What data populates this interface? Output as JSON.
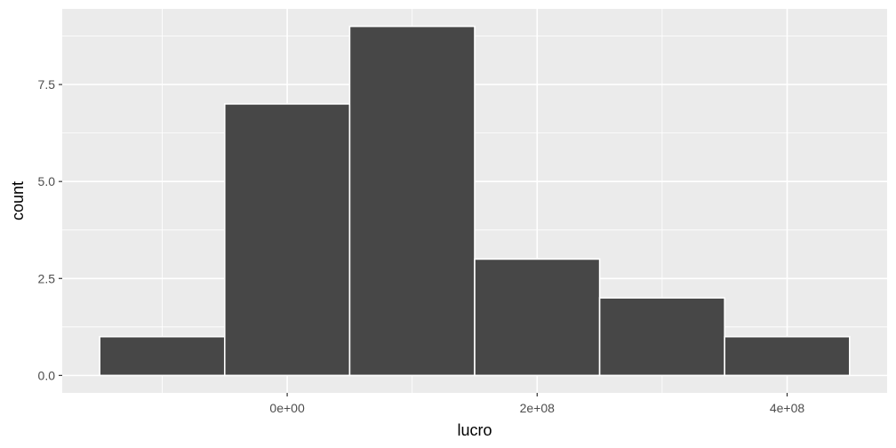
{
  "chart_data": {
    "type": "bar",
    "subtype": "histogram",
    "xlabel": "lucro",
    "ylabel": "count",
    "bins": [
      {
        "x0": -150000000,
        "x1": -50000000,
        "count": 1
      },
      {
        "x0": -50000000,
        "x1": 50000000,
        "count": 7
      },
      {
        "x0": 50000000,
        "x1": 150000000,
        "count": 9
      },
      {
        "x0": 150000000,
        "x1": 250000000,
        "count": 3
      },
      {
        "x0": 250000000,
        "x1": 350000000,
        "count": 2
      },
      {
        "x0": 350000000,
        "x1": 450000000,
        "count": 1
      }
    ],
    "xlim": [
      -180000000,
      480000000
    ],
    "ylim": [
      -0.45,
      9.45
    ],
    "x_major_ticks": [
      0,
      200000000,
      400000000
    ],
    "x_tick_labels": [
      "0e+00",
      "2e+08",
      "4e+08"
    ],
    "x_minor_ticks": [
      -100000000,
      100000000,
      300000000
    ],
    "y_major_ticks": [
      0,
      2.5,
      5,
      7.5
    ],
    "y_tick_labels": [
      "0.0",
      "2.5",
      "5.0",
      "7.5"
    ],
    "y_minor_ticks": [
      1.25,
      3.75,
      6.25,
      8.75
    ],
    "grid": true,
    "colors": {
      "panel_background": "#ebebeb",
      "grid_line": "#ffffff",
      "bar_fill": "#474747",
      "bar_outline": "#ffffff",
      "tick_text": "#4d4d4d",
      "tick_mark": "#333333"
    }
  }
}
